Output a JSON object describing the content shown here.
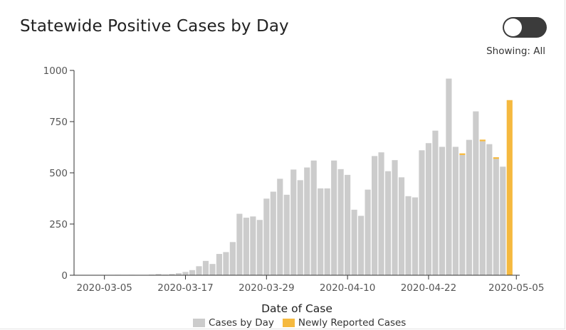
{
  "header": {
    "title": "Statewide Positive Cases by Day",
    "toggle_state": "off",
    "showing_label": "Showing: All"
  },
  "colors": {
    "cases": "#cccccc",
    "newly_reported": "#f5b93f",
    "axis": "#333333"
  },
  "chart_data": {
    "type": "bar",
    "stacked": true,
    "xlabel": "Date of Case",
    "ylabel": "",
    "ylim": [
      0,
      1000
    ],
    "yticks": [
      0,
      250,
      500,
      750,
      1000
    ],
    "xtick_labels": [
      "2020-03-05",
      "2020-03-17",
      "2020-03-29",
      "2020-04-10",
      "2020-04-22",
      "2020-05-05"
    ],
    "categories": [
      "2020-03-01",
      "2020-03-02",
      "2020-03-03",
      "2020-03-04",
      "2020-03-05",
      "2020-03-06",
      "2020-03-07",
      "2020-03-08",
      "2020-03-09",
      "2020-03-10",
      "2020-03-11",
      "2020-03-12",
      "2020-03-13",
      "2020-03-14",
      "2020-03-15",
      "2020-03-16",
      "2020-03-17",
      "2020-03-18",
      "2020-03-19",
      "2020-03-20",
      "2020-03-21",
      "2020-03-22",
      "2020-03-23",
      "2020-03-24",
      "2020-03-25",
      "2020-03-26",
      "2020-03-27",
      "2020-03-28",
      "2020-03-29",
      "2020-03-30",
      "2020-03-31",
      "2020-04-01",
      "2020-04-02",
      "2020-04-03",
      "2020-04-04",
      "2020-04-05",
      "2020-04-06",
      "2020-04-07",
      "2020-04-08",
      "2020-04-09",
      "2020-04-10",
      "2020-04-11",
      "2020-04-12",
      "2020-04-13",
      "2020-04-14",
      "2020-04-15",
      "2020-04-16",
      "2020-04-17",
      "2020-04-18",
      "2020-04-19",
      "2020-04-20",
      "2020-04-21",
      "2020-04-22",
      "2020-04-23",
      "2020-04-24",
      "2020-04-25",
      "2020-04-26",
      "2020-04-27",
      "2020-04-28",
      "2020-04-29",
      "2020-04-30",
      "2020-05-01",
      "2020-05-02",
      "2020-05-03",
      "2020-05-04",
      "2020-05-05"
    ],
    "series": [
      {
        "name": "Cases by Day",
        "values": [
          0,
          0,
          0,
          0,
          1,
          1,
          2,
          0,
          2,
          1,
          1,
          3,
          6,
          3,
          6,
          10,
          16,
          25,
          44,
          70,
          55,
          104,
          113,
          162,
          300,
          281,
          287,
          270,
          374,
          408,
          471,
          393,
          516,
          464,
          526,
          560,
          424,
          424,
          560,
          518,
          490,
          320,
          290,
          418,
          582,
          600,
          508,
          562,
          478,
          386,
          380,
          610,
          645,
          706,
          627,
          960,
          627,
          587,
          661,
          800,
          654,
          640,
          568,
          530,
          0,
          0
        ]
      },
      {
        "name": "Newly Reported Cases",
        "values": [
          0,
          0,
          0,
          0,
          0,
          0,
          0,
          0,
          0,
          0,
          0,
          0,
          0,
          0,
          0,
          0,
          0,
          0,
          0,
          0,
          0,
          0,
          0,
          0,
          0,
          0,
          0,
          0,
          0,
          0,
          0,
          0,
          0,
          0,
          0,
          0,
          0,
          0,
          0,
          0,
          0,
          0,
          0,
          0,
          0,
          0,
          0,
          0,
          0,
          0,
          0,
          0,
          0,
          0,
          0,
          0,
          0,
          8,
          0,
          0,
          8,
          0,
          8,
          0,
          855,
          0
        ]
      }
    ],
    "legend": "bottom-center"
  }
}
